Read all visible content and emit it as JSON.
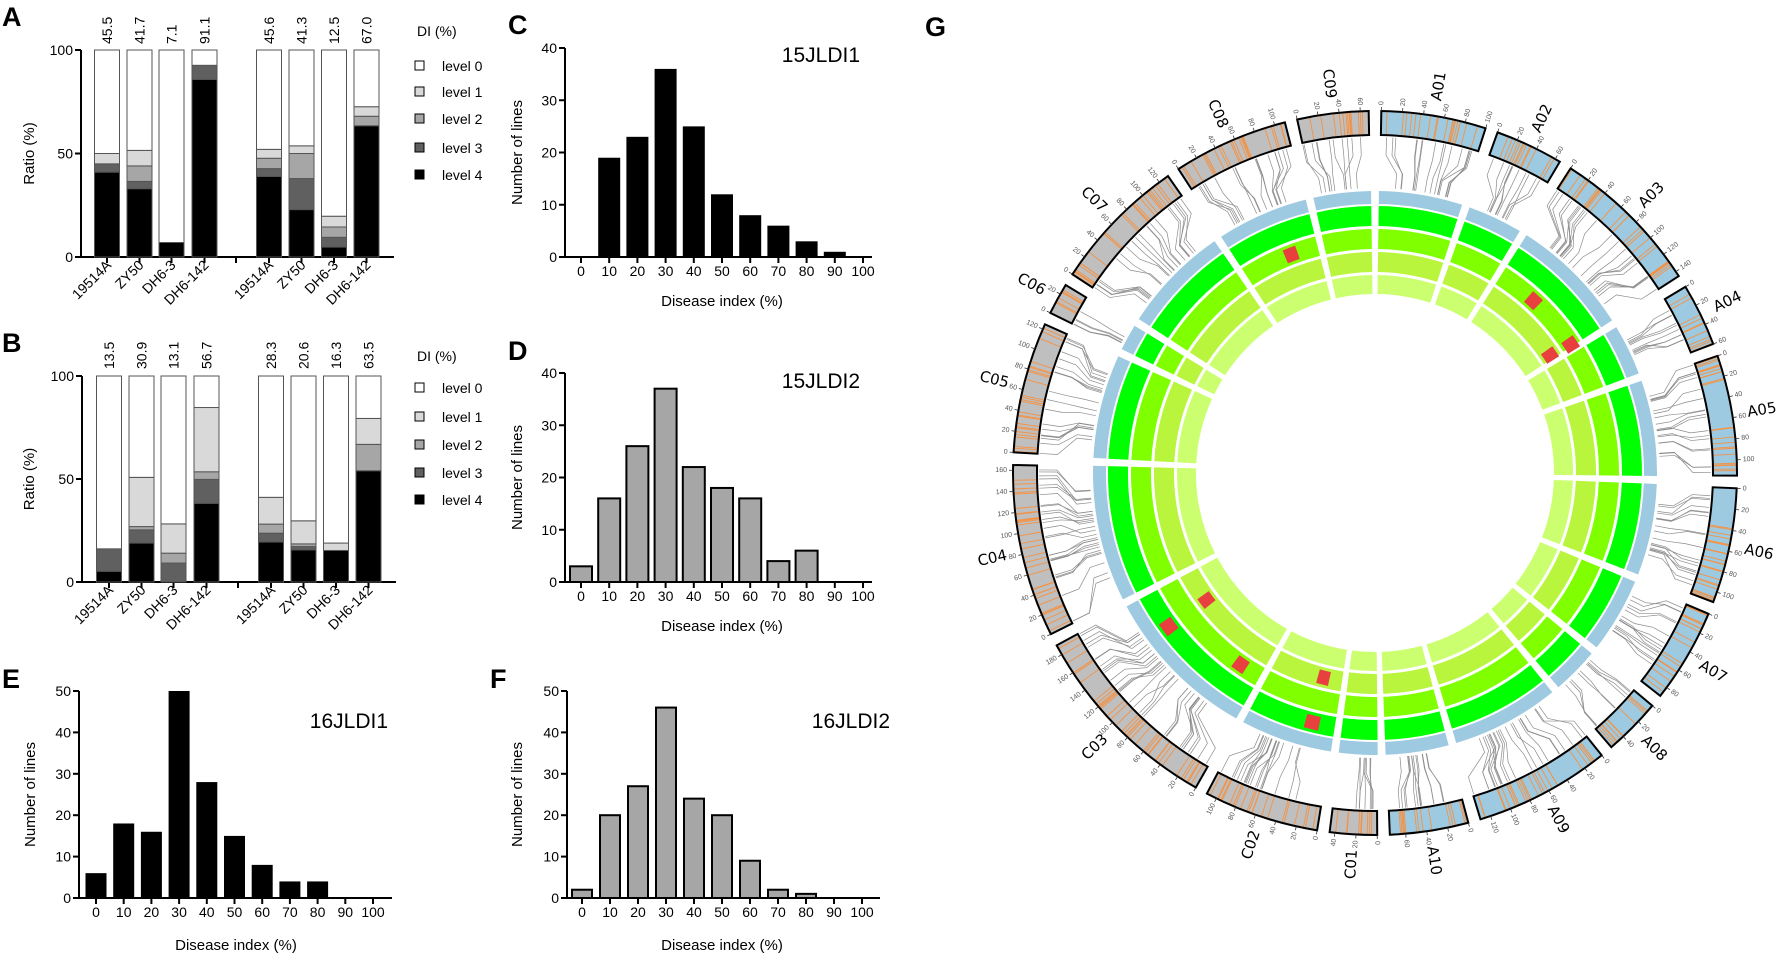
{
  "panel_labels": {
    "A": "A",
    "B": "B",
    "C": "C",
    "D": "D",
    "E": "E",
    "F": "F",
    "G": "G"
  },
  "colors": {
    "levels": [
      "#ffffff",
      "#d9d9d9",
      "#a6a6a6",
      "#606060",
      "#000000"
    ],
    "hist_black": "#000000",
    "hist_gray": "#a6a6a6",
    "genome_A": "#9ecae1",
    "genome_C": "#bfbfbf",
    "marker_line": "#f39245",
    "link": "#8c8c8c",
    "tracks": [
      "#9ecae1",
      "#00ff00",
      "#80ff00",
      "#b8f53c",
      "#ccff70"
    ],
    "qtl": "#e8403f"
  },
  "chart_data": [
    {
      "id": "A",
      "type": "bar",
      "stacked": true,
      "ylabel": "Ratio (%)",
      "ylim": [
        0,
        100
      ],
      "yticks": [
        "0",
        "50",
        "100"
      ],
      "legend_title": "DI (%)",
      "legend": [
        "level 0",
        "level 1",
        "level 2",
        "level 3",
        "level 4"
      ],
      "categories": [
        "19514A",
        "ZY50",
        "DH6-3",
        "DH6-142",
        "19514A",
        "ZY50",
        "DH6-3",
        "DH6-142"
      ],
      "di_values": [
        "45.5",
        "41.7",
        "7.1",
        "91.1",
        "45.6",
        "41.3",
        "12.5",
        "67.0"
      ],
      "series_order": "level 0..level 4 (%)",
      "values": [
        [
          50,
          5,
          0,
          4,
          41
        ],
        [
          48.5,
          7.5,
          7.5,
          3.5,
          33
        ],
        [
          93,
          0,
          0,
          0,
          7
        ],
        [
          7.4,
          0,
          0,
          6.8,
          85.8
        ],
        [
          48,
          4.3,
          5,
          3.8,
          38.9
        ],
        [
          46.3,
          3.7,
          12.1,
          15,
          22.9
        ],
        [
          80.3,
          5.2,
          5,
          4.7,
          4.8
        ],
        [
          27.4,
          4.6,
          4.6,
          0,
          63.4
        ]
      ]
    },
    {
      "id": "B",
      "type": "bar",
      "stacked": true,
      "ylabel": "Ratio (%)",
      "ylim": [
        0,
        100
      ],
      "yticks": [
        "0",
        "50",
        "100"
      ],
      "legend_title": "DI (%)",
      "legend": [
        "level 0",
        "level 1",
        "level 2",
        "level 3",
        "level 4"
      ],
      "categories": [
        "19514A",
        "ZY50",
        "DH6-3",
        "DH6-142",
        "19514A",
        "ZY50",
        "DH6-3",
        "DH6-142"
      ],
      "di_values": [
        "13.5",
        "30.9",
        "13.1",
        "56.7",
        "28.3",
        "20.6",
        "16.3",
        "63.5"
      ],
      "series_order": "level 0..level 4 (%)",
      "values": [
        [
          83.9,
          0,
          0,
          10.9,
          5.2
        ],
        [
          49.2,
          23.9,
          1.6,
          6.4,
          18.9
        ],
        [
          71.8,
          14.2,
          4.8,
          9.2,
          0
        ],
        [
          15.3,
          31.2,
          3.7,
          11.6,
          38.2
        ],
        [
          58.9,
          13,
          4.4,
          4.3,
          19.4
        ],
        [
          70.3,
          11.2,
          1.3,
          1.6,
          15.6
        ],
        [
          81.1,
          3.6,
          0,
          0,
          15.3
        ],
        [
          20.6,
          12.6,
          12.8,
          0,
          54
        ]
      ]
    },
    {
      "id": "C",
      "type": "bar",
      "title": "15JLDI1",
      "xlabel": "Disease index (%)",
      "ylabel": "Number of lines",
      "ylim": [
        0,
        40
      ],
      "yticks": [
        "0",
        "10",
        "20",
        "30",
        "40"
      ],
      "x": [
        "0",
        "10",
        "20",
        "30",
        "40",
        "50",
        "60",
        "70",
        "80",
        "90",
        "100"
      ],
      "values": [
        0,
        19,
        23,
        36,
        25,
        12,
        8,
        6,
        3,
        1,
        0
      ]
    },
    {
      "id": "D",
      "type": "bar",
      "title": "15JLDI2",
      "xlabel": "Disease index (%)",
      "ylabel": "Number of lines",
      "ylim": [
        0,
        40
      ],
      "yticks": [
        "0",
        "10",
        "20",
        "30",
        "40"
      ],
      "x": [
        "0",
        "10",
        "20",
        "30",
        "40",
        "50",
        "60",
        "70",
        "80",
        "90",
        "100"
      ],
      "values": [
        3,
        16,
        26,
        37,
        22,
        18,
        16,
        4,
        6,
        0,
        0
      ]
    },
    {
      "id": "E",
      "type": "bar",
      "title": "16JLDI1",
      "xlabel": "Disease index (%)",
      "ylabel": "Number of lines",
      "ylim": [
        0,
        50
      ],
      "yticks": [
        "0",
        "10",
        "20",
        "30",
        "40",
        "50"
      ],
      "x": [
        "0",
        "10",
        "20",
        "30",
        "40",
        "50",
        "60",
        "70",
        "80",
        "90",
        "100"
      ],
      "values": [
        6,
        18,
        16,
        50,
        28,
        15,
        8,
        4,
        4,
        0,
        0
      ]
    },
    {
      "id": "F",
      "type": "bar",
      "title": "16JLDI2",
      "xlabel": "Disease index (%)",
      "ylabel": "Number of lines",
      "ylim": [
        0,
        50
      ],
      "yticks": [
        "0",
        "10",
        "20",
        "30",
        "40",
        "50"
      ],
      "x": [
        "0",
        "10",
        "20",
        "30",
        "40",
        "50",
        "60",
        "70",
        "80",
        "90",
        "100"
      ],
      "values": [
        2,
        20,
        27,
        46,
        24,
        20,
        9,
        2,
        1,
        0,
        0
      ]
    }
  ],
  "circos": {
    "tick_step_mb": 20,
    "chromosomes": [
      {
        "name": "A01",
        "genome": "A",
        "length": 100
      },
      {
        "name": "A02",
        "genome": "A",
        "length": 65
      },
      {
        "name": "A03",
        "genome": "A",
        "length": 145
      },
      {
        "name": "A04",
        "genome": "A",
        "length": 60
      },
      {
        "name": "A05",
        "genome": "A",
        "length": 115
      },
      {
        "name": "A06",
        "genome": "A",
        "length": 110
      },
      {
        "name": "A07",
        "genome": "A",
        "length": 90
      },
      {
        "name": "A08",
        "genome": "A",
        "length": 55
      },
      {
        "name": "A09",
        "genome": "A",
        "length": 130
      },
      {
        "name": "A10",
        "genome": "A",
        "length": 75
      },
      {
        "name": "C01",
        "genome": "C",
        "length": 45
      },
      {
        "name": "C02",
        "genome": "C",
        "length": 110
      },
      {
        "name": "C03",
        "genome": "C",
        "length": 190
      },
      {
        "name": "C04",
        "genome": "C",
        "length": 165
      },
      {
        "name": "C05",
        "genome": "C",
        "length": 125
      },
      {
        "name": "C06",
        "genome": "C",
        "length": 30
      },
      {
        "name": "C07",
        "genome": "C",
        "length": 130
      },
      {
        "name": "C08",
        "genome": "C",
        "length": 110
      },
      {
        "name": "C09",
        "genome": "C",
        "length": 68
      }
    ],
    "qtl_markers": [
      {
        "chromosome": "C08",
        "position_mb": 71,
        "track": 2
      },
      {
        "chromosome": "A03",
        "position_mb": 59,
        "track": 2
      },
      {
        "chromosome": "A03",
        "position_mb": 143,
        "track": 2
      },
      {
        "chromosome": "A03",
        "position_mb": 139,
        "track": 3
      },
      {
        "chromosome": "C03",
        "position_mb": 139,
        "track": 3
      },
      {
        "chromosome": "C03",
        "position_mb": 141,
        "track": 1
      },
      {
        "chromosome": "C03",
        "position_mb": 32,
        "track": 2
      },
      {
        "chromosome": "C02",
        "position_mb": 29,
        "track": 3
      },
      {
        "chromosome": "C02",
        "position_mb": 29,
        "track": 1
      }
    ]
  }
}
